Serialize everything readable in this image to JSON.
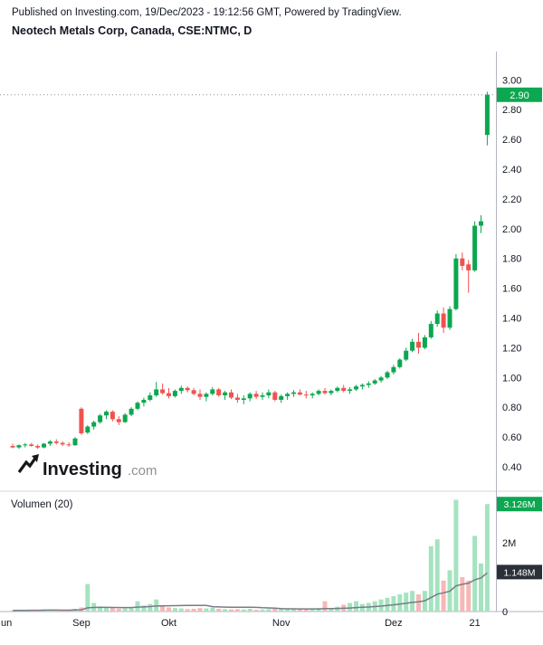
{
  "header": {
    "published_line": "Published on Investing.com, 19/Dec/2023 - 19:12:56 GMT, Powered by TradingView.",
    "title": "Neotech Metals Corp, Canada, CSE:NTMC, D"
  },
  "watermark": {
    "main": "Investing",
    "suffix": ".com"
  },
  "colors": {
    "up": "#0ca750",
    "down": "#ef5350",
    "vol_up": "#a5e3c0",
    "vol_down": "#f6b8b6",
    "ma_line": "#787b86",
    "badge_dark": "#2b2f38",
    "dotted_line": "#8a8e98",
    "separator": "#d1d4dc",
    "axis_line": "#b2b5be"
  },
  "chart_data": {
    "type": "candlestick_with_volume",
    "title": "Neotech Metals Corp, Canada, CSE:NTMC, D",
    "symbol": "CSE:NTMC",
    "exchange": "Canada, CSE",
    "interval": "D",
    "volume_indicator_label": "Volumen (20)",
    "volume_unit": "millions",
    "price_axis": {
      "last_price": 2.9,
      "last_price_label": "2.90",
      "ticks": [
        {
          "v": 3.0,
          "label": "3.00"
        },
        {
          "v": 2.8,
          "label": "2.80"
        },
        {
          "v": 2.6,
          "label": "2.60"
        },
        {
          "v": 2.4,
          "label": "2.40"
        },
        {
          "v": 2.2,
          "label": "2.20"
        },
        {
          "v": 2.0,
          "label": "2.00"
        },
        {
          "v": 1.8,
          "label": "1.80"
        },
        {
          "v": 1.6,
          "label": "1.60"
        },
        {
          "v": 1.4,
          "label": "1.40"
        },
        {
          "v": 1.2,
          "label": "1.20"
        },
        {
          "v": 1.0,
          "label": "1.00"
        },
        {
          "v": 0.8,
          "label": "0.80"
        },
        {
          "v": 0.6,
          "label": "0.60"
        },
        {
          "v": 0.4,
          "label": "0.40"
        }
      ]
    },
    "volume_axis": {
      "ticks": [
        {
          "v": 2,
          "label": "2M"
        },
        {
          "v": 0,
          "label": "0"
        }
      ],
      "last_volume_value": 3.126,
      "last_volume_label": "3.126M",
      "ma_value": 1.148,
      "ma_label": "1.148M",
      "ma_period": 20
    },
    "x_ticks": [
      {
        "label": "un",
        "i": -1
      },
      {
        "label": "Sep",
        "i": 11
      },
      {
        "label": "Okt",
        "i": 25
      },
      {
        "label": "Nov",
        "i": 43
      },
      {
        "label": "Dez",
        "i": 61
      },
      {
        "label": "21",
        "i": 74
      }
    ],
    "candles": [
      [
        0.54,
        0.555,
        0.525,
        0.53,
        0.03
      ],
      [
        0.53,
        0.55,
        0.52,
        0.545,
        0.04
      ],
      [
        0.545,
        0.56,
        0.53,
        0.55,
        0.03
      ],
      [
        0.55,
        0.56,
        0.535,
        0.54,
        0.05
      ],
      [
        0.54,
        0.55,
        0.52,
        0.53,
        0.03
      ],
      [
        0.53,
        0.56,
        0.525,
        0.555,
        0.06
      ],
      [
        0.555,
        0.58,
        0.54,
        0.57,
        0.05
      ],
      [
        0.57,
        0.585,
        0.55,
        0.56,
        0.04
      ],
      [
        0.56,
        0.57,
        0.54,
        0.55,
        0.03
      ],
      [
        0.55,
        0.565,
        0.535,
        0.545,
        0.04
      ],
      [
        0.545,
        0.6,
        0.54,
        0.59,
        0.08
      ],
      [
        0.79,
        0.8,
        0.615,
        0.625,
        0.12
      ],
      [
        0.63,
        0.68,
        0.62,
        0.67,
        0.8
      ],
      [
        0.67,
        0.71,
        0.65,
        0.7,
        0.25
      ],
      [
        0.7,
        0.755,
        0.69,
        0.745,
        0.15
      ],
      [
        0.745,
        0.78,
        0.72,
        0.77,
        0.12
      ],
      [
        0.77,
        0.78,
        0.705,
        0.72,
        0.1
      ],
      [
        0.72,
        0.74,
        0.68,
        0.7,
        0.08
      ],
      [
        0.7,
        0.76,
        0.695,
        0.75,
        0.09
      ],
      [
        0.75,
        0.8,
        0.74,
        0.79,
        0.1
      ],
      [
        0.79,
        0.84,
        0.78,
        0.83,
        0.3
      ],
      [
        0.83,
        0.865,
        0.805,
        0.85,
        0.18
      ],
      [
        0.85,
        0.9,
        0.84,
        0.88,
        0.22
      ],
      [
        0.88,
        0.97,
        0.87,
        0.92,
        0.35
      ],
      [
        0.92,
        0.96,
        0.885,
        0.895,
        0.15
      ],
      [
        0.895,
        0.93,
        0.86,
        0.875,
        0.12
      ],
      [
        0.875,
        0.92,
        0.865,
        0.91,
        0.1
      ],
      [
        0.91,
        0.945,
        0.89,
        0.93,
        0.09
      ],
      [
        0.93,
        0.94,
        0.9,
        0.915,
        0.07
      ],
      [
        0.915,
        0.93,
        0.88,
        0.89,
        0.08
      ],
      [
        0.89,
        0.92,
        0.85,
        0.87,
        0.1
      ],
      [
        0.87,
        0.9,
        0.84,
        0.89,
        0.09
      ],
      [
        0.89,
        0.935,
        0.88,
        0.92,
        0.11
      ],
      [
        0.92,
        0.93,
        0.87,
        0.88,
        0.08
      ],
      [
        0.88,
        0.91,
        0.85,
        0.9,
        0.07
      ],
      [
        0.9,
        0.92,
        0.855,
        0.865,
        0.06
      ],
      [
        0.865,
        0.89,
        0.83,
        0.85,
        0.07
      ],
      [
        0.85,
        0.88,
        0.82,
        0.86,
        0.06
      ],
      [
        0.86,
        0.9,
        0.84,
        0.89,
        0.08
      ],
      [
        0.89,
        0.91,
        0.855,
        0.87,
        0.05
      ],
      [
        0.87,
        0.9,
        0.85,
        0.88,
        0.06
      ],
      [
        0.88,
        0.92,
        0.86,
        0.9,
        0.07
      ],
      [
        0.9,
        0.91,
        0.84,
        0.85,
        0.09
      ],
      [
        0.85,
        0.885,
        0.83,
        0.875,
        0.08
      ],
      [
        0.875,
        0.9,
        0.85,
        0.89,
        0.07
      ],
      [
        0.89,
        0.915,
        0.87,
        0.9,
        0.09
      ],
      [
        0.9,
        0.92,
        0.88,
        0.885,
        0.07
      ],
      [
        0.885,
        0.91,
        0.86,
        0.88,
        0.06
      ],
      [
        0.88,
        0.9,
        0.86,
        0.89,
        0.08
      ],
      [
        0.89,
        0.92,
        0.88,
        0.91,
        0.1
      ],
      [
        0.91,
        0.93,
        0.885,
        0.895,
        0.3
      ],
      [
        0.895,
        0.92,
        0.88,
        0.91,
        0.09
      ],
      [
        0.91,
        0.94,
        0.9,
        0.93,
        0.14
      ],
      [
        0.93,
        0.95,
        0.9,
        0.91,
        0.2
      ],
      [
        0.91,
        0.935,
        0.89,
        0.92,
        0.25
      ],
      [
        0.92,
        0.95,
        0.91,
        0.94,
        0.3
      ],
      [
        0.94,
        0.96,
        0.92,
        0.95,
        0.22
      ],
      [
        0.95,
        0.975,
        0.93,
        0.96,
        0.25
      ],
      [
        0.96,
        0.99,
        0.95,
        0.98,
        0.3
      ],
      [
        0.98,
        1.01,
        0.965,
        1.0,
        0.35
      ],
      [
        1.0,
        1.045,
        0.99,
        1.035,
        0.4
      ],
      [
        1.035,
        1.085,
        1.02,
        1.07,
        0.45
      ],
      [
        1.07,
        1.13,
        1.06,
        1.12,
        0.5
      ],
      [
        1.12,
        1.2,
        1.11,
        1.18,
        0.55
      ],
      [
        1.18,
        1.26,
        1.17,
        1.24,
        0.6
      ],
      [
        1.24,
        1.3,
        1.16,
        1.2,
        0.5
      ],
      [
        1.2,
        1.285,
        1.19,
        1.27,
        0.6
      ],
      [
        1.27,
        1.38,
        1.26,
        1.36,
        1.9
      ],
      [
        1.36,
        1.45,
        1.34,
        1.43,
        2.1
      ],
      [
        1.43,
        1.47,
        1.3,
        1.335,
        0.9
      ],
      [
        1.335,
        1.48,
        1.32,
        1.46,
        1.2
      ],
      [
        1.46,
        1.83,
        1.45,
        1.8,
        3.25
      ],
      [
        1.8,
        1.84,
        1.72,
        1.75,
        1.0
      ],
      [
        1.76,
        1.79,
        1.57,
        1.72,
        0.9
      ],
      [
        1.72,
        2.05,
        1.71,
        2.02,
        2.2
      ],
      [
        2.02,
        2.09,
        1.97,
        2.05,
        1.4
      ],
      [
        2.63,
        2.92,
        2.56,
        2.9,
        3.126
      ]
    ]
  }
}
